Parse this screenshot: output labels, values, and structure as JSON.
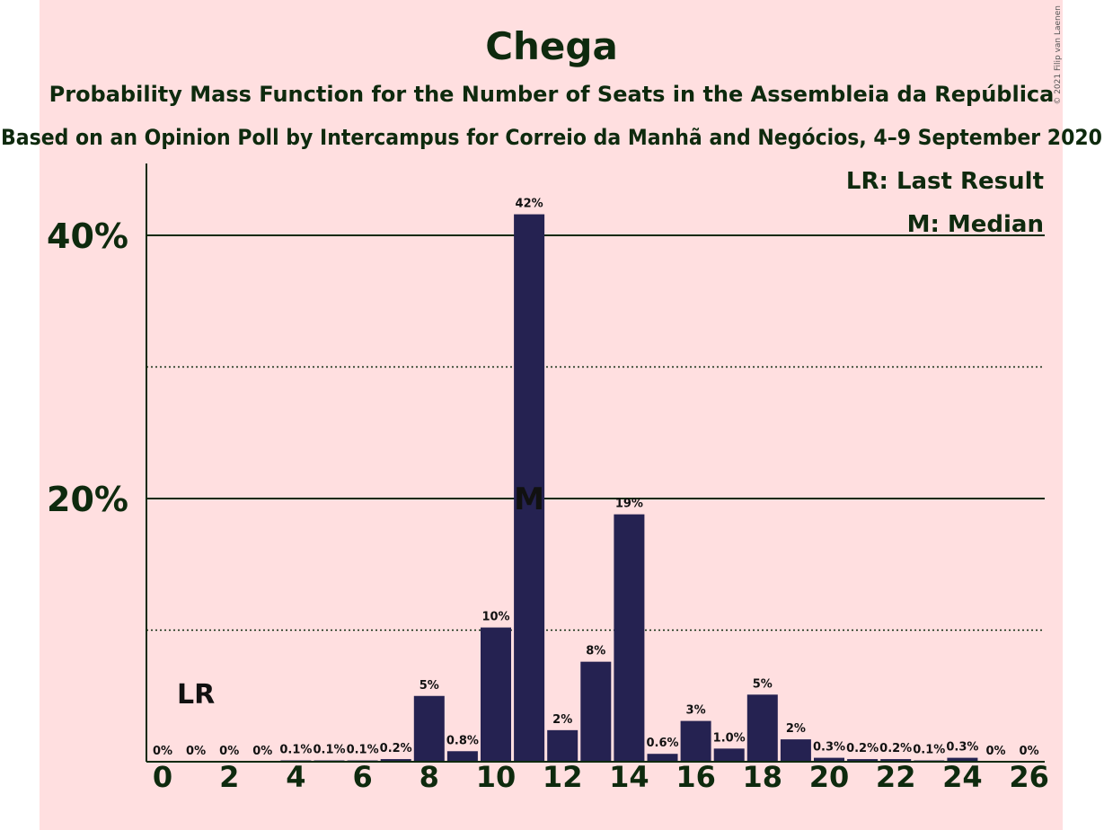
{
  "chart_data": {
    "type": "bar",
    "title": "Chega",
    "subtitle1": "Probability Mass Function for the Number of Seats in the Assembleia da República",
    "subtitle2": "Based on an Opinion Poll by Intercampus for Correio da Manhã and Negócios, 4–9 September 2020",
    "copyright": "© 2021 Filip van Laenen",
    "x": [
      0,
      1,
      2,
      3,
      4,
      5,
      6,
      7,
      8,
      9,
      10,
      11,
      12,
      13,
      14,
      15,
      16,
      17,
      18,
      19,
      20,
      21,
      22,
      23,
      24,
      25,
      26
    ],
    "values": [
      0,
      0,
      0,
      0,
      0.1,
      0.1,
      0.1,
      0.2,
      5,
      0.8,
      10.2,
      41.6,
      2.4,
      7.6,
      18.8,
      0.6,
      3.1,
      1.0,
      5.1,
      1.7,
      0.3,
      0.2,
      0.2,
      0.1,
      0.3,
      0,
      0
    ],
    "labels": [
      "0%",
      "0%",
      "0%",
      "0%",
      "0.1%",
      "0.1%",
      "0.1%",
      "0.2%",
      "5%",
      "0.8%",
      "10%",
      "42%",
      "2%",
      "8%",
      "19%",
      "0.6%",
      "3%",
      "1.0%",
      "5%",
      "2%",
      "0.3%",
      "0.2%",
      "0.2%",
      "0.1%",
      "0.3%",
      "0%",
      "0%"
    ],
    "x_ticks": [
      "0",
      "2",
      "4",
      "6",
      "8",
      "10",
      "12",
      "14",
      "16",
      "18",
      "20",
      "22",
      "24",
      "26"
    ],
    "y_ticks": [
      "20%",
      "40%"
    ],
    "ylim": [
      0,
      45
    ],
    "solid_gridlines": [
      20,
      40
    ],
    "dotted_gridlines": [
      10,
      30
    ],
    "last_result": {
      "seat": 1,
      "label": "LR"
    },
    "median": {
      "seat": 11,
      "label": "M"
    },
    "legend": {
      "lr": "LR: Last Result",
      "m": "M: Median",
      "placement": "top-right"
    },
    "colors": {
      "bar": "#252251",
      "background": "#ffdfe0",
      "text": "#0e2a0e",
      "median_label": "#ffdfe0"
    }
  }
}
